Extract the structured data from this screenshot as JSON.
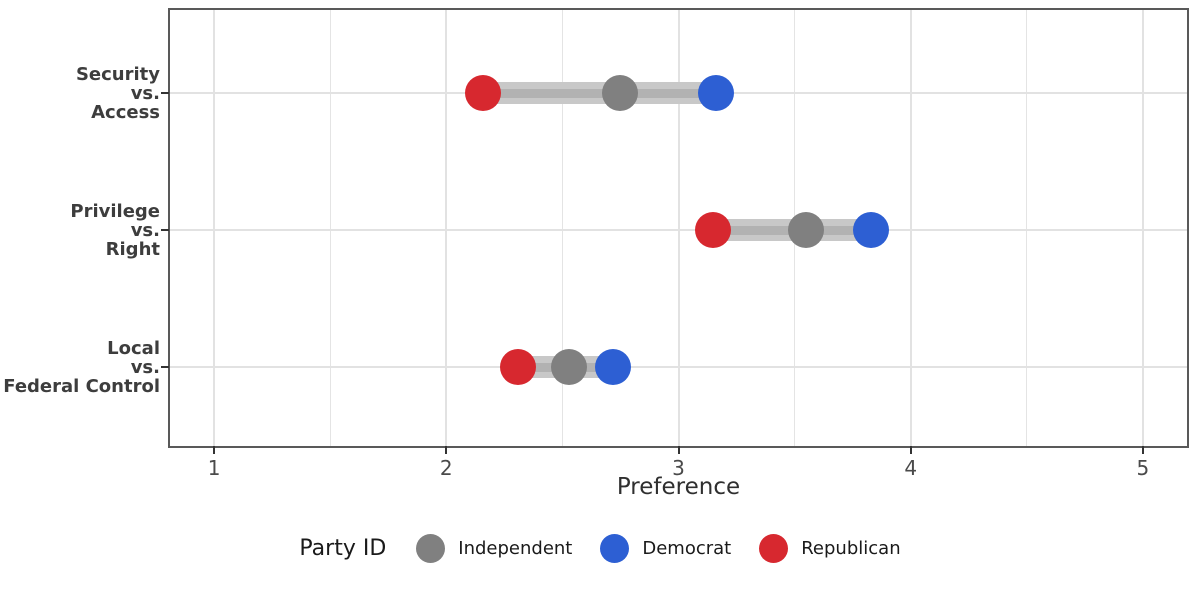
{
  "legend": {
    "title": "Party ID",
    "items": [
      {
        "label": "Independent",
        "color": "#808080"
      },
      {
        "label": "Democrat",
        "color": "#2d5fd3"
      },
      {
        "label": "Republican",
        "color": "#d7282f"
      }
    ]
  },
  "chart_data": {
    "type": "dumbbell",
    "orientation": "horizontal",
    "xlabel": "Preference",
    "x_domain": [
      0.81,
      5.19
    ],
    "x_ticks": [
      1,
      2,
      3,
      4,
      5
    ],
    "x_minor_step": 0.5,
    "grid": true,
    "legend_position": "bottom",
    "categories": [
      "Security vs. Access",
      "Privilege vs. Right",
      "Local vs. Federal Control"
    ],
    "category_label_lines": [
      [
        "Security",
        "vs.",
        "Access"
      ],
      [
        "Privilege",
        "vs.",
        "Right"
      ],
      [
        "Local",
        "vs.",
        "Federal Control"
      ]
    ],
    "series": [
      {
        "name": "Independent",
        "color": "#808080",
        "values": [
          2.75,
          3.55,
          2.53
        ]
      },
      {
        "name": "Democrat",
        "color": "#2d5fd3",
        "values": [
          3.16,
          3.83,
          2.72
        ]
      },
      {
        "name": "Republican",
        "color": "#d7282f",
        "values": [
          2.16,
          3.15,
          2.31
        ]
      }
    ],
    "band_color": "#c8c8c8",
    "band_core_color": "#b2b2b2"
  }
}
